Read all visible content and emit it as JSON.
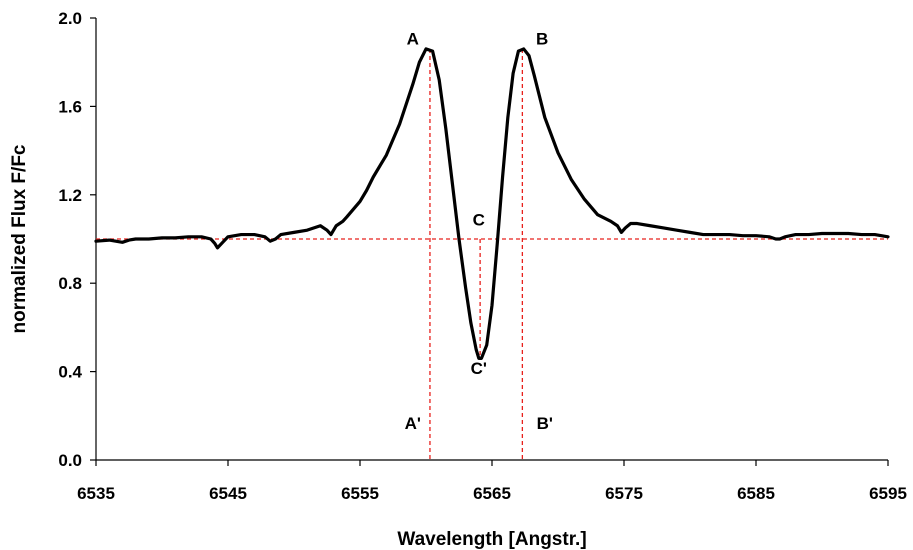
{
  "chart_data": {
    "type": "line",
    "title": "",
    "xlabel": "Wavelength [Angstr.]",
    "ylabel": "normalized Flux F/Fc",
    "xlim": [
      6535,
      6595
    ],
    "ylim": [
      0.0,
      2.0
    ],
    "xticks": [
      "6535",
      "6545",
      "6555",
      "6565",
      "6575",
      "6585",
      "6595"
    ],
    "yticks": [
      "0.0",
      "0.4",
      "0.8",
      "1.2",
      "1.6",
      "2.0"
    ],
    "grid": false,
    "legend": "none",
    "line_color": "#000000",
    "guide_color": "#e8201c",
    "series": [
      {
        "x": [
          6535.0,
          6536.0,
          6537.0,
          6537.5,
          6538.0,
          6539.0,
          6540.0,
          6541.0,
          6542.0,
          6543.0,
          6543.7,
          6544.0,
          6544.2,
          6544.6,
          6545.0,
          6546.0,
          6547.0,
          6547.8,
          6548.2,
          6548.6,
          6549.0,
          6550.0,
          6551.0,
          6552.0,
          6552.5,
          6552.8,
          6553.2,
          6553.7,
          6554.0,
          6555.0,
          6555.5,
          6556.0,
          6557.0,
          6558.0,
          6559.0,
          6559.5,
          6560.0,
          6560.5,
          6561.0,
          6561.5,
          6562.0,
          6562.5,
          6563.0,
          6563.4,
          6563.8,
          6564.0,
          6564.2,
          6564.6,
          6565.0,
          6565.4,
          6565.8,
          6566.2,
          6566.6,
          6567.0,
          6567.4,
          6567.8,
          6568.2,
          6569.0,
          6570.0,
          6571.0,
          6572.0,
          6573.0,
          6574.0,
          6574.5,
          6574.8,
          6575.1,
          6575.5,
          6576.0,
          6577.0,
          6578.0,
          6579.0,
          6580.0,
          6581.0,
          6582.0,
          6583.0,
          6584.0,
          6585.0,
          6586.0,
          6586.5,
          6586.8,
          6587.2,
          6588.0,
          6589.0,
          6590.0,
          6591.0,
          6592.0,
          6593.0,
          6594.0,
          6595.0
        ],
        "y": [
          0.99,
          0.995,
          0.985,
          0.995,
          1.0,
          1.0,
          1.005,
          1.005,
          1.01,
          1.01,
          1.0,
          0.98,
          0.96,
          0.985,
          1.01,
          1.02,
          1.02,
          1.01,
          0.99,
          1.0,
          1.02,
          1.03,
          1.04,
          1.06,
          1.04,
          1.02,
          1.06,
          1.08,
          1.1,
          1.17,
          1.22,
          1.28,
          1.38,
          1.52,
          1.7,
          1.8,
          1.86,
          1.85,
          1.72,
          1.5,
          1.25,
          1.0,
          0.78,
          0.62,
          0.5,
          0.46,
          0.46,
          0.52,
          0.7,
          0.98,
          1.28,
          1.55,
          1.75,
          1.85,
          1.86,
          1.83,
          1.74,
          1.55,
          1.39,
          1.27,
          1.18,
          1.11,
          1.08,
          1.06,
          1.03,
          1.05,
          1.07,
          1.07,
          1.06,
          1.05,
          1.04,
          1.03,
          1.02,
          1.02,
          1.02,
          1.015,
          1.015,
          1.01,
          1.0,
          1.0,
          1.01,
          1.02,
          1.02,
          1.025,
          1.025,
          1.025,
          1.02,
          1.02,
          1.01
        ]
      }
    ],
    "guides": {
      "continuum": 1.0,
      "peak_a_x": 6560.3,
      "peak_b_x": 6567.3,
      "center_c_x": 6564.1,
      "peak_y": 1.86,
      "core_y": 0.46
    },
    "annotations": [
      {
        "label": "A",
        "x": 6559.0,
        "y": 1.88
      },
      {
        "label": "B",
        "x": 6568.8,
        "y": 1.88
      },
      {
        "label": "C",
        "x": 6564.0,
        "y": 1.06
      },
      {
        "label": "C'",
        "x": 6564.0,
        "y": 0.39
      },
      {
        "label": "A'",
        "x": 6559.0,
        "y": 0.14
      },
      {
        "label": "B'",
        "x": 6569.0,
        "y": 0.14
      }
    ]
  }
}
